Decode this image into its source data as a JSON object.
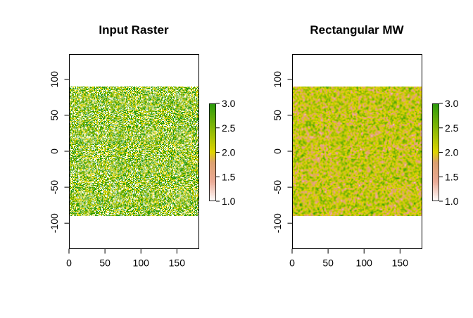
{
  "chart_data": [
    {
      "type": "heatmap",
      "title": "Input Raster",
      "xlim": [
        0,
        180
      ],
      "ylim": [
        -135,
        135
      ],
      "extent": {
        "x": [
          0,
          180
        ],
        "y": [
          -90,
          90
        ]
      },
      "grid": {
        "cols": 180,
        "rows": 180
      },
      "value_range": [
        1,
        3
      ],
      "value_mix": {
        "1": 0.28,
        "2": 0.33,
        "3": 0.39
      },
      "colors": {
        "1": "#ffffff",
        "2": "#dfd400",
        "3": "#2a9a0c"
      },
      "x_ticks": [
        0,
        50,
        100,
        150
      ],
      "x_tick_labels": [
        "0",
        "50",
        "100",
        "150"
      ],
      "y_ticks": [
        100,
        50,
        0,
        -50,
        -100
      ],
      "y_tick_labels": [
        "100",
        "50",
        "0",
        "-50",
        "-100"
      ],
      "legend_ticks": [
        3,
        2.5,
        2,
        1.5,
        1
      ],
      "legend_tick_labels": [
        "3.0",
        "2.5",
        "2.0",
        "1.5",
        "1.0"
      ],
      "legend_placement": "right"
    },
    {
      "type": "heatmap",
      "title": "Rectangular MW",
      "xlim": [
        0,
        180
      ],
      "ylim": [
        -135,
        135
      ],
      "extent": {
        "x": [
          0,
          180
        ],
        "y": [
          -90,
          90
        ]
      },
      "grid": {
        "cols": 180,
        "rows": 180
      },
      "value_range": [
        1,
        3
      ],
      "smoothing": "moving-window mean",
      "colors": {
        "1": "#ffffff",
        "2": "#dfd400",
        "3": "#2a9a0c"
      },
      "x_ticks": [
        0,
        50,
        100,
        150
      ],
      "x_tick_labels": [
        "0",
        "50",
        "100",
        "150"
      ],
      "y_ticks": [
        100,
        50,
        0,
        -50,
        -100
      ],
      "y_tick_labels": [
        "100",
        "50",
        "0",
        "-50",
        "-100"
      ],
      "legend_ticks": [
        3,
        2.5,
        2,
        1.5,
        1
      ],
      "legend_tick_labels": [
        "3.0",
        "2.5",
        "2.0",
        "1.5",
        "1.0"
      ],
      "legend_placement": "right"
    }
  ]
}
